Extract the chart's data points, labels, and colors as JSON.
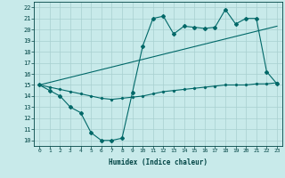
{
  "xlabel": "Humidex (Indice chaleur)",
  "ylabel": "",
  "bg_color": "#c8eaea",
  "grid_color": "#a8d0d0",
  "line_color": "#006868",
  "x_ticks": [
    0,
    1,
    2,
    3,
    4,
    5,
    6,
    7,
    8,
    9,
    10,
    11,
    12,
    13,
    14,
    15,
    16,
    17,
    18,
    19,
    20,
    21,
    22,
    23
  ],
  "y_ticks": [
    10,
    11,
    12,
    13,
    14,
    15,
    16,
    17,
    18,
    19,
    20,
    21,
    22
  ],
  "ylim": [
    9.5,
    22.5
  ],
  "xlim": [
    -0.5,
    23.5
  ],
  "series1_x": [
    0,
    1,
    2,
    3,
    4,
    5,
    6,
    7,
    8,
    9,
    10,
    11,
    12,
    13,
    14,
    15,
    16,
    17,
    18,
    19,
    20,
    21,
    22,
    23
  ],
  "series1_y": [
    15.0,
    14.5,
    14.0,
    13.0,
    12.5,
    10.7,
    10.0,
    10.0,
    10.2,
    14.3,
    18.5,
    21.0,
    21.2,
    19.6,
    20.3,
    20.2,
    20.1,
    20.2,
    21.8,
    20.5,
    21.0,
    21.0,
    16.2,
    15.1
  ],
  "series2_x": [
    0,
    23
  ],
  "series2_y": [
    15.0,
    20.3
  ],
  "series3_x": [
    0,
    1,
    2,
    3,
    4,
    5,
    6,
    7,
    8,
    9,
    10,
    11,
    12,
    13,
    14,
    15,
    16,
    17,
    18,
    19,
    20,
    21,
    22,
    23
  ],
  "series3_y": [
    15.0,
    14.8,
    14.6,
    14.4,
    14.2,
    14.0,
    13.8,
    13.7,
    13.8,
    13.9,
    14.0,
    14.2,
    14.4,
    14.5,
    14.6,
    14.7,
    14.8,
    14.9,
    15.0,
    15.0,
    15.0,
    15.1,
    15.1,
    15.2
  ],
  "x_tick_labels": [
    "0",
    "1",
    "2",
    "3",
    "4",
    "5",
    "6",
    "7",
    "8",
    "9",
    "10",
    "11",
    "12",
    "13",
    "14",
    "15",
    "16",
    "17",
    "18",
    "19",
    "20",
    "21",
    "22",
    "23"
  ],
  "y_tick_labels": [
    "10",
    "11",
    "12",
    "13",
    "14",
    "15",
    "16",
    "17",
    "18",
    "19",
    "20",
    "21",
    "22"
  ]
}
